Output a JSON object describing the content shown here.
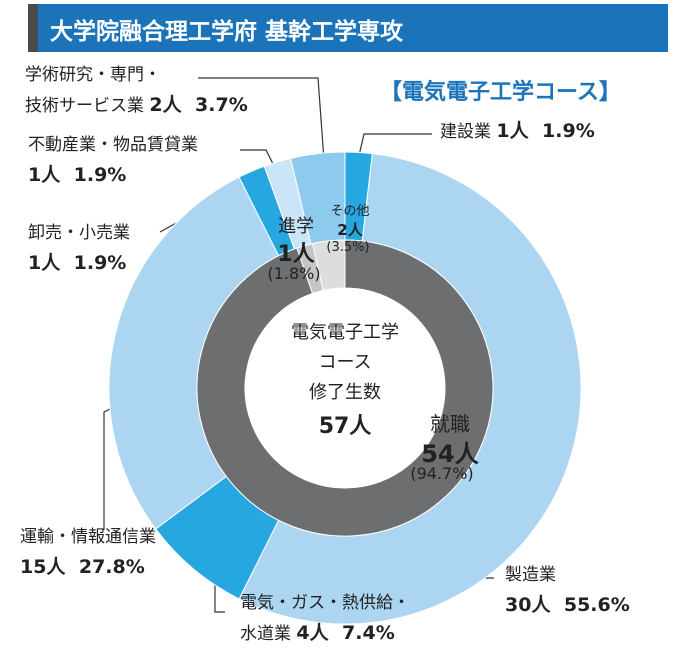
{
  "chart_data": {
    "type": "nested-donut",
    "title": "大学院融合理工学府 基幹工学専攻",
    "subtitle": "【電気電子工学コース】",
    "center_lines": [
      "電気電子工学",
      "コース",
      "修了生数"
    ],
    "total": 57,
    "total_label": "57人",
    "inner": {
      "categories": [
        "就職",
        "進学",
        "その他"
      ],
      "values": [
        54,
        1,
        2
      ],
      "value_labels": [
        "54人",
        "1人",
        "2人"
      ],
      "percent_labels": [
        "(94.7%)",
        "(1.8%)",
        "(3.5%)"
      ],
      "colors": [
        "#6d6e70",
        "#c4c5c7",
        "#dcdddd"
      ]
    },
    "outer": {
      "categories": [
        "建設業",
        "製造業",
        "電気・ガス・熱供給・水道業",
        "運輸・情報通信業",
        "卸売・小売業",
        "不動産業・物品賃貸業",
        "学術研究・専門・技術サービス業"
      ],
      "values": [
        1,
        30,
        4,
        15,
        1,
        1,
        2
      ],
      "value_labels": [
        "1人",
        "30人",
        "4人",
        "15人",
        "1人",
        "1人",
        "2人"
      ],
      "percent_labels": [
        "1.9%",
        "55.6%",
        "7.4%",
        "27.8%",
        "1.9%",
        "1.9%",
        "3.7%"
      ],
      "colors": [
        "#27a7e0",
        "#acd5f1",
        "#27a7e0",
        "#acd5f1",
        "#27a7e0",
        "#c9e5f7",
        "#8ccbee"
      ]
    }
  }
}
